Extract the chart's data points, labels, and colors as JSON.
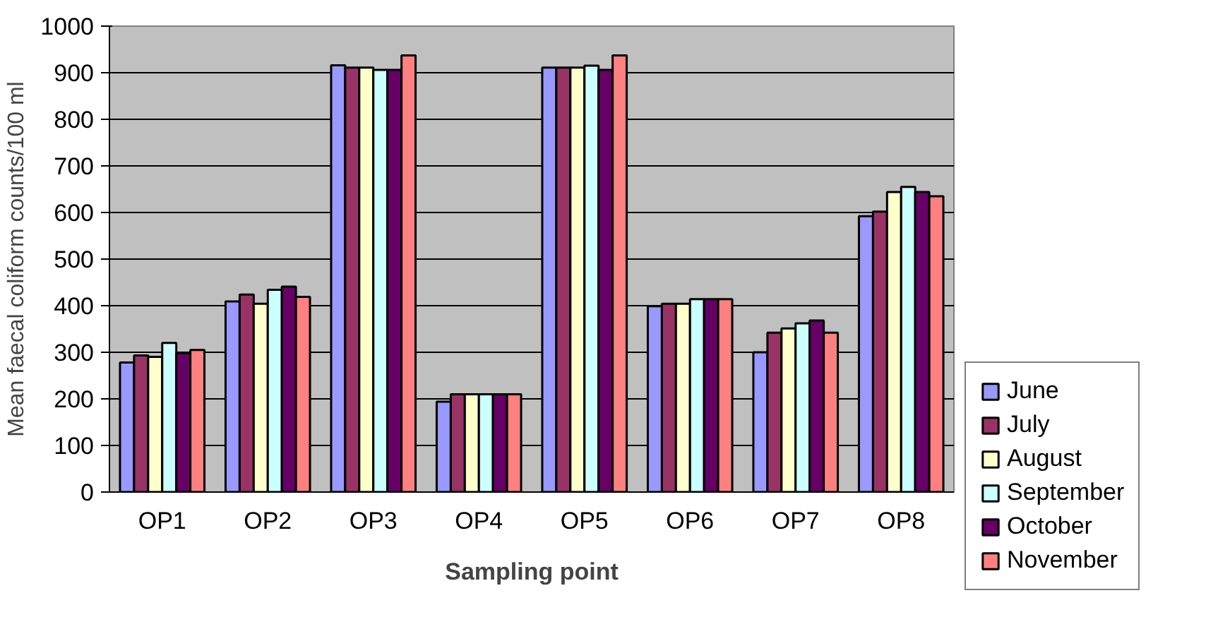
{
  "chart_data": {
    "type": "bar",
    "xlabel": "Sampling point",
    "ylabel": "Mean faecal coliform counts/100 ml",
    "categories": [
      "OP1",
      "OP2",
      "OP3",
      "OP4",
      "OP5",
      "OP6",
      "OP7",
      "OP8"
    ],
    "series": [
      {
        "name": "June",
        "color": "#9999ff",
        "values": [
          278,
          409,
          916,
          194,
          911,
          399,
          300,
          592
        ]
      },
      {
        "name": "July",
        "color": "#993366",
        "values": [
          293,
          424,
          911,
          210,
          911,
          404,
          342,
          602
        ]
      },
      {
        "name": "August",
        "color": "#ffffcc",
        "values": [
          290,
          404,
          911,
          210,
          911,
          404,
          351,
          644
        ]
      },
      {
        "name": "September",
        "color": "#ccffff",
        "values": [
          320,
          434,
          906,
          210,
          915,
          414,
          362,
          655
        ]
      },
      {
        "name": "October",
        "color": "#660066",
        "values": [
          298,
          441,
          906,
          210,
          906,
          414,
          368,
          644
        ]
      },
      {
        "name": "November",
        "color": "#ff8080",
        "values": [
          305,
          419,
          937,
          210,
          937,
          414,
          342,
          635
        ]
      }
    ],
    "ylim": [
      0,
      1000
    ],
    "yticks": [
      0,
      100,
      200,
      300,
      400,
      500,
      600,
      700,
      800,
      900,
      1000
    ],
    "grid": "y",
    "legend": "right"
  }
}
